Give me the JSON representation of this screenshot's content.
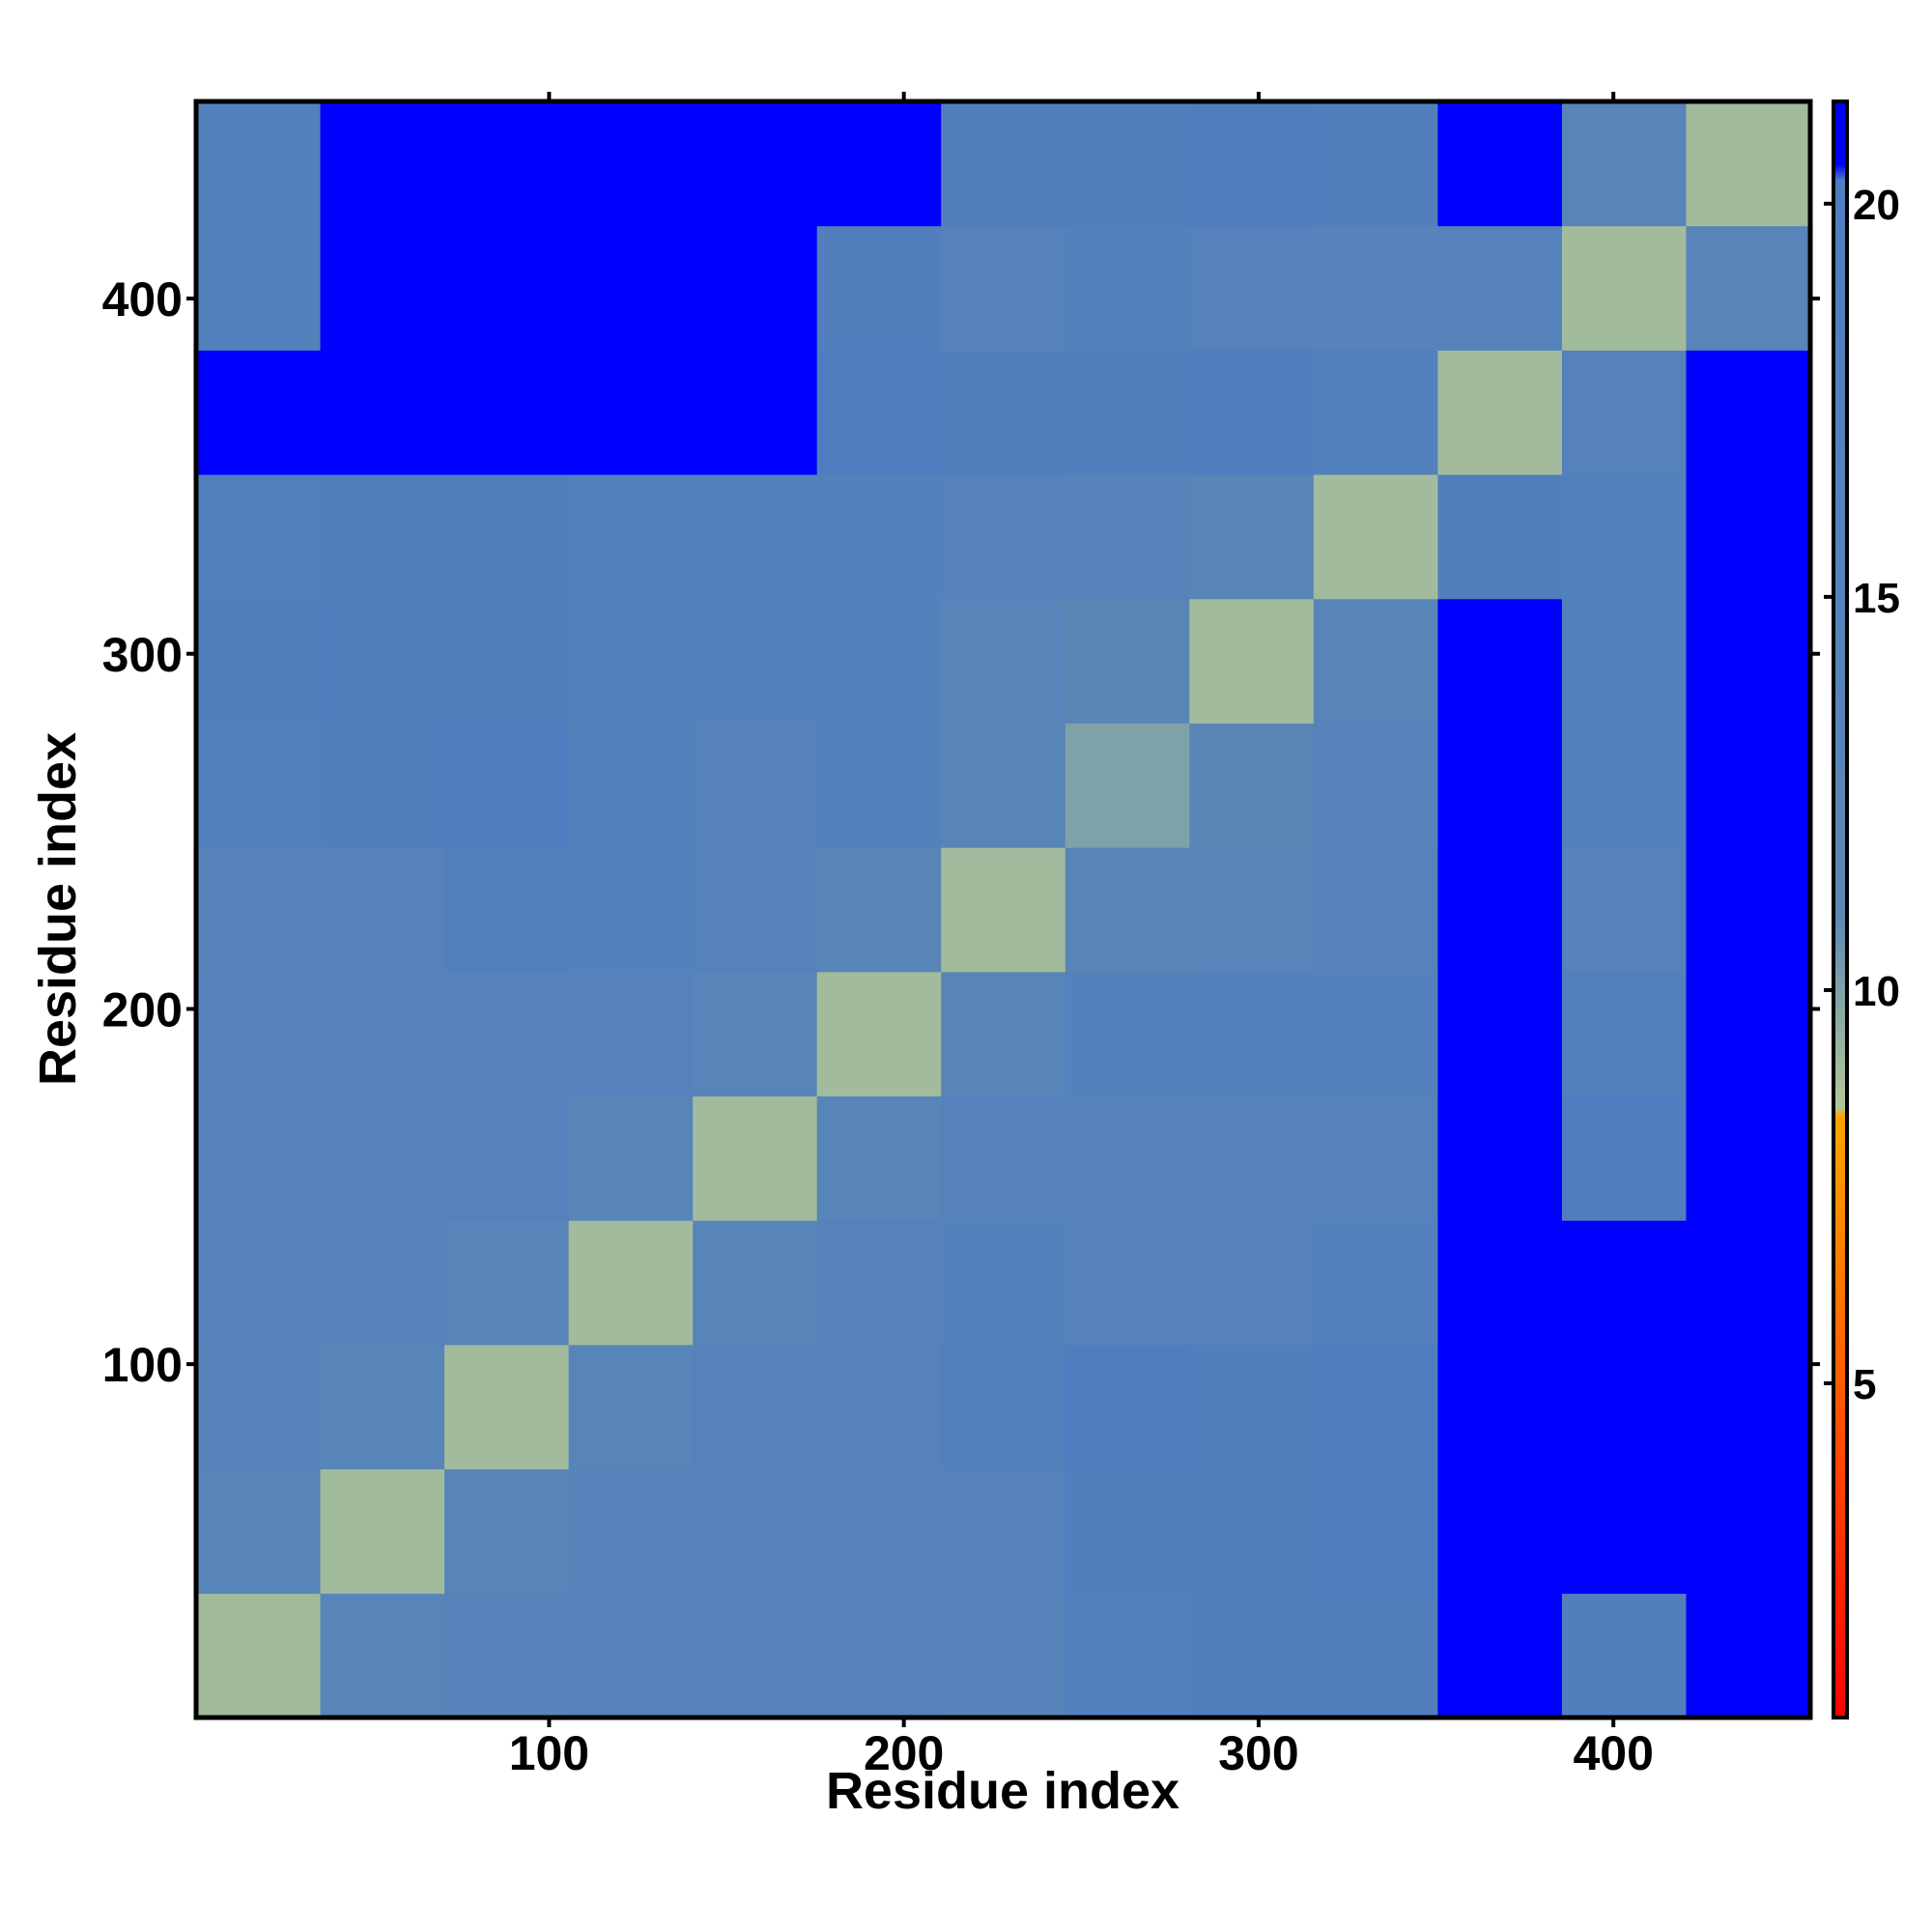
{
  "chart_data": {
    "type": "heatmap",
    "xlabel": "Residue index",
    "ylabel": "Residue index",
    "bins": [
      0.5,
      35.5,
      70.5,
      105.5,
      140.5,
      175.5,
      210.5,
      245.5,
      280.5,
      315.5,
      350.5,
      385.5,
      420.5,
      455.5
    ],
    "z": [
      [
        9,
        14,
        15,
        16,
        16,
        16,
        15,
        18,
        19,
        19,
        21,
        19,
        21
      ],
      [
        14,
        9,
        13,
        15,
        16,
        15,
        16,
        19,
        19,
        20,
        21,
        21,
        21
      ],
      [
        15,
        13,
        9,
        14,
        16,
        16,
        18,
        20,
        19,
        20,
        21,
        21,
        21
      ],
      [
        16,
        15,
        14,
        9,
        13,
        16,
        17,
        16,
        16,
        17,
        21,
        21,
        21
      ],
      [
        16,
        16,
        16,
        13,
        9,
        14,
        16,
        16,
        16,
        16,
        21,
        20,
        21
      ],
      [
        16,
        15,
        16,
        16,
        14,
        9,
        13,
        17,
        17,
        17,
        21,
        18,
        21
      ],
      [
        15,
        16,
        18,
        17,
        16,
        13,
        9,
        13,
        14,
        16,
        21,
        16,
        21
      ],
      [
        18,
        19,
        20,
        17,
        16,
        17,
        13,
        10,
        12,
        15,
        21,
        17,
        21
      ],
      [
        19,
        19,
        19,
        17,
        17,
        17,
        14,
        12,
        9,
        13,
        21,
        17,
        21
      ],
      [
        18,
        19,
        19,
        17,
        17,
        17,
        16,
        15,
        13,
        9,
        19,
        17,
        21
      ],
      [
        21,
        21,
        21,
        21,
        21,
        20,
        19,
        19,
        20,
        18,
        9,
        16,
        21
      ],
      [
        17,
        21,
        21,
        21,
        21,
        19,
        16,
        17,
        16,
        15,
        16,
        9,
        14
      ],
      [
        17,
        21,
        21,
        21,
        21,
        21,
        19,
        19,
        20,
        19,
        21,
        14,
        9
      ]
    ],
    "xlim": [
      0.5,
      455.5
    ],
    "ylim": [
      0.5,
      455.5
    ],
    "xticks": [
      100,
      200,
      300,
      400
    ],
    "yticks": [
      100,
      200,
      300,
      400
    ],
    "colorscale": [
      [
        0.75,
        "#ff0000"
      ],
      [
        8.4,
        "#ffa500"
      ],
      [
        8.5,
        "#b4c896"
      ],
      [
        11,
        "#5b87b5"
      ],
      [
        20.3,
        "#4f7ec0"
      ],
      [
        20.5,
        "#0000ff"
      ],
      [
        21.3,
        "#0000ff"
      ]
    ],
    "clim": [
      0.75,
      21.3
    ],
    "cticks": [
      5,
      10,
      15,
      20
    ]
  }
}
